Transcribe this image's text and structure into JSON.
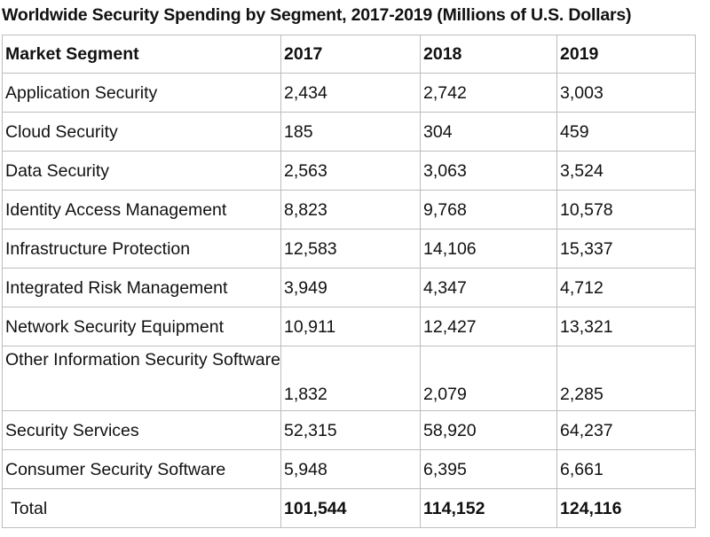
{
  "title": "Worldwide Security Spending by Segment, 2017-2019 (Millions of U.S. Dollars)",
  "chart_data": {
    "type": "table",
    "title": "Worldwide Security Spending by Segment, 2017-2019 (Millions of U.S. Dollars)",
    "columns": [
      "Market Segment",
      "2017",
      "2018",
      "2019"
    ],
    "rows": [
      {
        "segment": "Application Security",
        "values": [
          "2,434",
          "2,742",
          "3,003"
        ]
      },
      {
        "segment": "Cloud Security",
        "values": [
          "185",
          "304",
          "459"
        ]
      },
      {
        "segment": "Data Security",
        "values": [
          "2,563",
          "3,063",
          "3,524"
        ]
      },
      {
        "segment": "Identity Access Management",
        "values": [
          "8,823",
          "9,768",
          "10,578"
        ]
      },
      {
        "segment": "Infrastructure Protection",
        "values": [
          "12,583",
          "14,106",
          "15,337"
        ]
      },
      {
        "segment": "Integrated Risk Management",
        "values": [
          "3,949",
          "4,347",
          "4,712"
        ]
      },
      {
        "segment": "Network Security Equipment",
        "values": [
          "10,911",
          "12,427",
          "13,321"
        ]
      },
      {
        "segment": "Other Information Security Software",
        "values": [
          "1,832",
          "2,079",
          "2,285"
        ]
      },
      {
        "segment": "Security Services",
        "values": [
          "52,315",
          "58,920",
          "64,237"
        ]
      },
      {
        "segment": "Consumer Security Software",
        "values": [
          "5,948",
          "6,395",
          "6,661"
        ]
      },
      {
        "segment": "Total",
        "values": [
          "101,544",
          "114,152",
          "124,116"
        ]
      }
    ]
  }
}
